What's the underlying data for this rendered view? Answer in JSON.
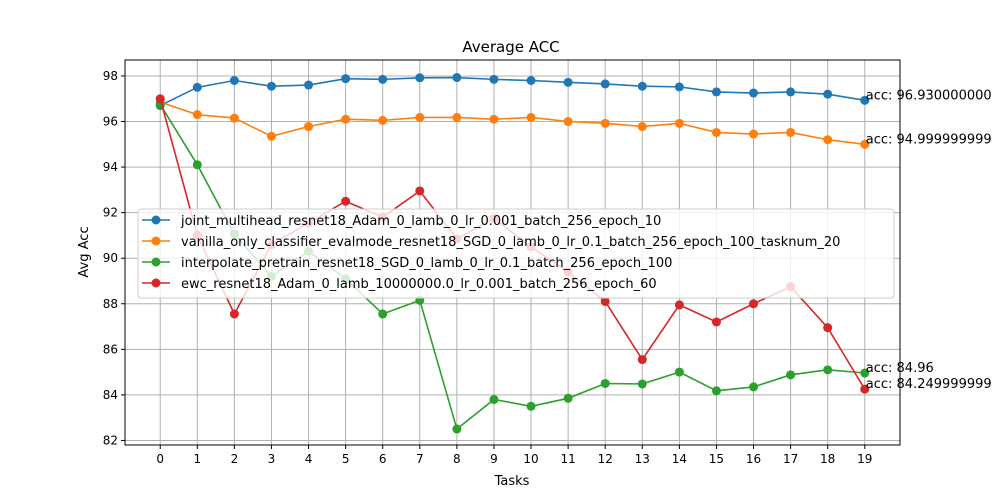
{
  "chart_data": {
    "type": "line",
    "title": "Average ACC",
    "xlabel": "Tasks",
    "ylabel": "Avg Acc",
    "x": [
      0,
      1,
      2,
      3,
      4,
      5,
      6,
      7,
      8,
      9,
      10,
      11,
      12,
      13,
      14,
      15,
      16,
      17,
      18,
      19
    ],
    "xticks": [
      "0",
      "1",
      "2",
      "3",
      "4",
      "5",
      "6",
      "7",
      "8",
      "9",
      "10",
      "11",
      "12",
      "13",
      "14",
      "15",
      "16",
      "17",
      "18",
      "19"
    ],
    "yticks": [
      "82",
      "84",
      "86",
      "88",
      "90",
      "92",
      "94",
      "96",
      "98"
    ],
    "xlim": [
      -0.95,
      19.95
    ],
    "ylim": [
      81.8,
      98.7
    ],
    "grid": true,
    "legend_position": "center-left",
    "series": [
      {
        "name": "joint_multihead_resnet18_Adam_0_lamb_0_lr_0.001_batch_256_epoch_10",
        "color": "#1f77b4",
        "values": [
          96.7,
          97.5,
          97.8,
          97.55,
          97.6,
          97.88,
          97.85,
          97.92,
          97.93,
          97.85,
          97.8,
          97.72,
          97.65,
          97.55,
          97.52,
          97.3,
          97.25,
          97.3,
          97.2,
          96.93
        ],
        "end_label": "acc: 96.930000000"
      },
      {
        "name": "vanilla_only_classifier_evalmode_resnet18_SGD_0_lamb_0_lr_0.1_batch_256_epoch_100_tasknum_20",
        "color": "#ff7f0e",
        "values": [
          96.85,
          96.3,
          96.15,
          95.35,
          95.78,
          96.1,
          96.05,
          96.18,
          96.18,
          96.1,
          96.18,
          96.0,
          95.92,
          95.78,
          95.92,
          95.52,
          95.45,
          95.52,
          95.2,
          95.0
        ],
        "end_label": "acc: 94.999999999"
      },
      {
        "name": "interpolate_pretrain_resnet18_SGD_0_lamb_0_lr_0.1_batch_256_epoch_100",
        "color": "#2ca02c",
        "values": [
          96.75,
          94.1,
          91.05,
          89.2,
          90.3,
          89.1,
          87.55,
          88.15,
          82.5,
          83.8,
          83.5,
          83.85,
          84.5,
          84.48,
          85.0,
          84.18,
          84.35,
          84.88,
          85.1,
          84.96
        ],
        "end_label": "acc: 84.96"
      },
      {
        "name": "ewc_resnet18_Adam_0_lamb_10000000.0_lr_0.001_batch_256_epoch_60",
        "color": "#d62728",
        "values": [
          97.0,
          91.0,
          87.55,
          90.6,
          91.55,
          92.5,
          91.8,
          92.95,
          90.85,
          91.75,
          90.5,
          89.4,
          88.1,
          85.55,
          87.95,
          87.2,
          88.0,
          88.75,
          86.95,
          84.25
        ],
        "end_label": "acc: 84.249999999"
      }
    ]
  }
}
